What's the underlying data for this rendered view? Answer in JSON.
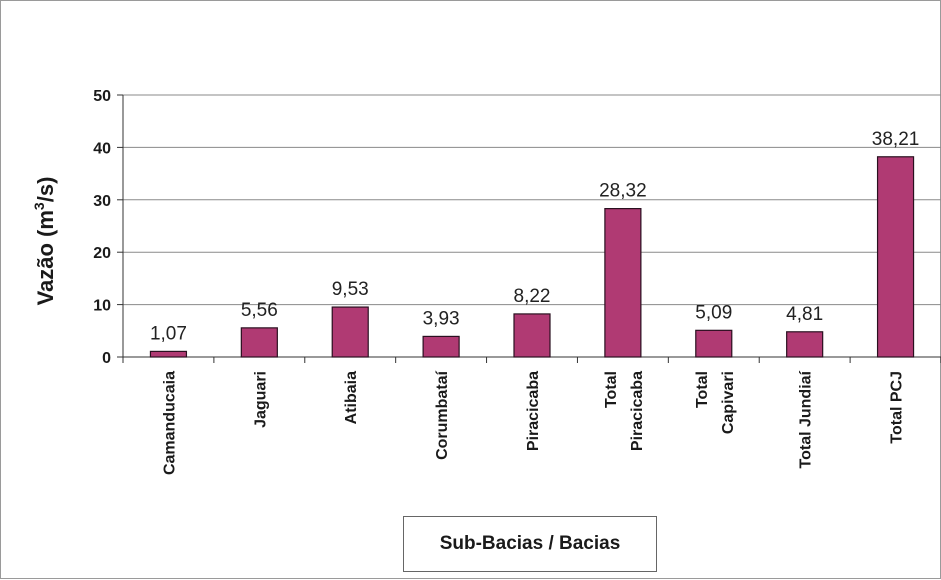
{
  "chart_data": {
    "type": "bar",
    "categories": [
      [
        "Camanducaia"
      ],
      [
        "Jaguari"
      ],
      [
        "Atibaia"
      ],
      [
        "Corumbataí"
      ],
      [
        "Piracicaba"
      ],
      [
        "Total",
        "Piracicaba"
      ],
      [
        "Total",
        "Capivari"
      ],
      [
        "Total Jundiaí"
      ],
      [
        "Total PCJ"
      ]
    ],
    "values": [
      1.07,
      5.56,
      9.53,
      3.93,
      8.22,
      28.32,
      5.09,
      4.81,
      38.21
    ],
    "data_labels": [
      "1,07",
      "5,56",
      "9,53",
      "3,93",
      "8,22",
      "28,32",
      "5,09",
      "4,81",
      "38,21"
    ],
    "ylabel": {
      "prefix": "Vazão (m",
      "sup": "3",
      "suffix": "/s)"
    },
    "xlabel": "Sub-Bacias / Bacias",
    "ylim": [
      0,
      50
    ],
    "yticks": [
      0,
      10,
      20,
      30,
      40,
      50
    ],
    "grid": true,
    "bar_color": "#b03a73",
    "bar_edge_color": "#2a1020"
  }
}
